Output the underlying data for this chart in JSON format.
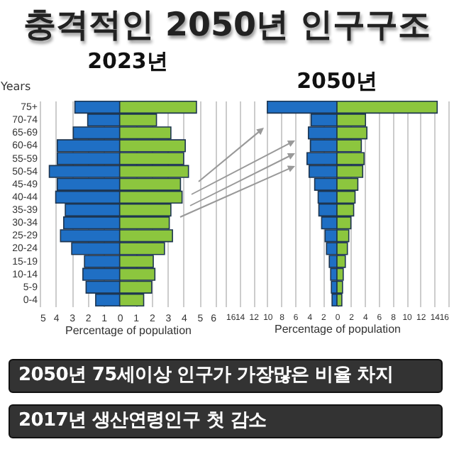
{
  "chart_data": [
    {
      "type": "other",
      "title": "충격적인 2050년 인구구조",
      "annotations": [
        "2050년 75세이상 인구가 가장많은 비율 차지",
        "2017년 생산연령인구 첫 감소"
      ]
    },
    {
      "type": "bar",
      "orientation": "horizontal",
      "stacked": true,
      "title": "2023년",
      "xlabel": "Percentage of population",
      "ylabel": "Years",
      "categories": [
        "75+",
        "70-74",
        "65-69",
        "60-64",
        "55-59",
        "50-54",
        "45-49",
        "40-44",
        "35-39",
        "30-34",
        "25-29",
        "20-24",
        "15-19",
        "10-14",
        "5-9",
        "0-4"
      ],
      "series": [
        {
          "color": "#1f6fc4",
          "values": [
            -2.8,
            -2.0,
            -2.9,
            -3.9,
            -3.9,
            -4.4,
            -3.9,
            -4.0,
            -3.4,
            -3.5,
            -3.7,
            -3.0,
            -2.2,
            -2.3,
            -2.1,
            -1.5
          ]
        },
        {
          "color": "#8cc63e",
          "values": [
            4.8,
            2.3,
            3.2,
            4.1,
            4.0,
            4.3,
            3.8,
            3.9,
            3.2,
            3.1,
            3.3,
            2.8,
            2.1,
            2.2,
            2.0,
            1.5
          ]
        }
      ],
      "xlim": [
        -5,
        6
      ],
      "xticks": [
        {
          "value": -5,
          "label": "5"
        },
        {
          "value": -4,
          "label": "4"
        },
        {
          "value": -3,
          "label": "3"
        },
        {
          "value": -2,
          "label": "2"
        },
        {
          "value": -1,
          "label": "1"
        },
        0,
        1,
        2,
        3,
        4,
        5,
        6
      ],
      "grid": "x"
    },
    {
      "type": "bar",
      "orientation": "horizontal",
      "stacked": true,
      "title": "2050년",
      "xlabel": "Percentage of population",
      "categories": [
        null,
        null,
        null,
        null,
        null,
        null,
        null,
        null,
        null,
        null,
        null,
        null,
        null,
        null,
        null,
        null
      ],
      "series": [
        {
          "color": "#1f6fc4",
          "values": [
            -10.0,
            -3.7,
            -4.1,
            -3.8,
            -4.3,
            -4.0,
            -3.2,
            -2.7,
            -2.6,
            -2.2,
            -1.7,
            -1.5,
            -1.1,
            -0.9,
            -0.8,
            -0.7
          ]
        },
        {
          "color": "#8cc63e",
          "values": [
            14.4,
            4.1,
            4.3,
            3.5,
            3.9,
            3.7,
            3.0,
            2.6,
            2.4,
            2.0,
            1.7,
            1.5,
            1.2,
            0.9,
            0.8,
            0.7
          ]
        }
      ],
      "xlim": [
        -16,
        16
      ],
      "xticks": [
        {
          "value": -16,
          "label": "16"
        },
        {
          "value": -14,
          "label": "14"
        },
        {
          "value": -12,
          "label": "12"
        },
        {
          "value": -10,
          "label": "10"
        },
        {
          "value": -8,
          "label": "8"
        },
        {
          "value": -6,
          "label": "6"
        },
        {
          "value": -4,
          "label": "4"
        },
        {
          "value": -2,
          "label": "2"
        },
        0,
        2,
        4,
        6,
        8,
        10,
        12,
        14,
        16
      ],
      "grid": "x"
    }
  ]
}
